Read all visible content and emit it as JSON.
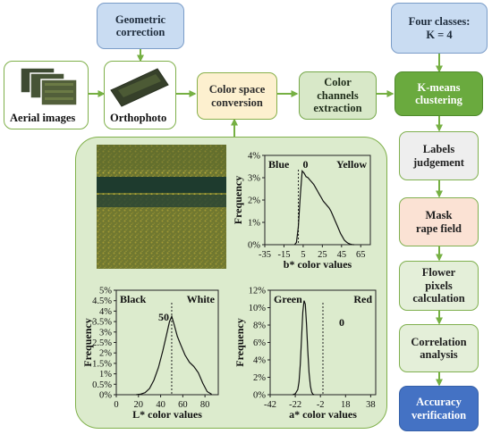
{
  "steps": {
    "geometric": "Geometric\ncorrection",
    "four_classes": "Four classes:\nK = 4",
    "color_space": "Color space\nconversion",
    "channels": "Color\nchannels\nextraction",
    "kmeans": "K-means\nclustering",
    "labels": "Labels\njudgement",
    "mask": "Mask\nrape field",
    "flower": "Flower\npixels\ncalculation",
    "correlation": "Correlation\nanalysis",
    "accuracy": "Accuracy\nverification"
  },
  "images": {
    "aerial": "Aerial images",
    "ortho": "Orthophoto"
  },
  "chart_data": [
    {
      "type": "line",
      "channel": "b*",
      "xlabel": "b* color values",
      "ylabel": "Frequency",
      "xticks": [
        "-35",
        "-15",
        "5",
        "25",
        "45",
        "65"
      ],
      "yticks": [
        "0%",
        "1%",
        "2%",
        "3%",
        "4%"
      ],
      "xlim": [
        -35,
        75
      ],
      "ylim": [
        0,
        4
      ],
      "left_label": "Blue",
      "right_label": "Yellow",
      "divider_label": "0",
      "divider": 0,
      "x": [
        -4,
        -2,
        0,
        2,
        4,
        6,
        8,
        10,
        12,
        14,
        16,
        18,
        20,
        22,
        24,
        26,
        28,
        30,
        32,
        34,
        36,
        38,
        40,
        42,
        44,
        46,
        48,
        50,
        52,
        54,
        56,
        58
      ],
      "y": [
        0.0,
        0.1,
        0.8,
        2.2,
        3.3,
        3.2,
        3.05,
        3.0,
        2.9,
        2.8,
        2.7,
        2.55,
        2.4,
        2.25,
        2.1,
        1.95,
        1.85,
        1.75,
        1.65,
        1.5,
        1.3,
        1.1,
        0.9,
        0.7,
        0.5,
        0.35,
        0.2,
        0.12,
        0.06,
        0.03,
        0.01,
        0.0
      ]
    },
    {
      "type": "line",
      "channel": "L*",
      "xlabel": "L* color values",
      "ylabel": "Frequency",
      "xticks": [
        "0",
        "20",
        "40",
        "60",
        "80"
      ],
      "yticks": [
        "0%",
        "0.5%",
        "1%",
        "1.5%",
        "2%",
        "2.5%",
        "3%",
        "3.5%",
        "4%",
        "4.5%",
        "5%"
      ],
      "xlim": [
        0,
        92
      ],
      "ylim": [
        0,
        5
      ],
      "left_label": "Black",
      "right_label": "White",
      "divider_label": "50",
      "divider": 50,
      "x": [
        18,
        22,
        26,
        30,
        34,
        38,
        42,
        45,
        48,
        50,
        52,
        55,
        58,
        62,
        66,
        70,
        74,
        78,
        82,
        86
      ],
      "y": [
        0.0,
        0.03,
        0.1,
        0.3,
        0.7,
        1.3,
        2.1,
        2.8,
        3.5,
        3.75,
        3.4,
        2.8,
        2.4,
        1.9,
        1.55,
        1.35,
        1.05,
        0.55,
        0.15,
        0.02
      ]
    },
    {
      "type": "line",
      "channel": "a*",
      "xlabel": "a* color values",
      "ylabel": "Frequency",
      "xticks": [
        "-42",
        "-22",
        "-2",
        "18",
        "38"
      ],
      "yticks": [
        "0%",
        "2%",
        "4%",
        "6%",
        "8%",
        "10%",
        "12%"
      ],
      "xlim": [
        -42,
        42
      ],
      "ylim": [
        0,
        12
      ],
      "left_label": "Green",
      "right_label": "Red",
      "divider_label": "0",
      "divider": 0,
      "x": [
        -24,
        -22,
        -20,
        -19,
        -18,
        -17,
        -16,
        -15,
        -14,
        -13,
        -12,
        -11,
        -10,
        -9,
        -8,
        -7
      ],
      "y": [
        0.0,
        0.1,
        0.6,
        1.5,
        3.5,
        6.5,
        9.5,
        10.8,
        10.4,
        8.0,
        5.0,
        2.5,
        1.0,
        0.3,
        0.05,
        0.0
      ]
    }
  ]
}
